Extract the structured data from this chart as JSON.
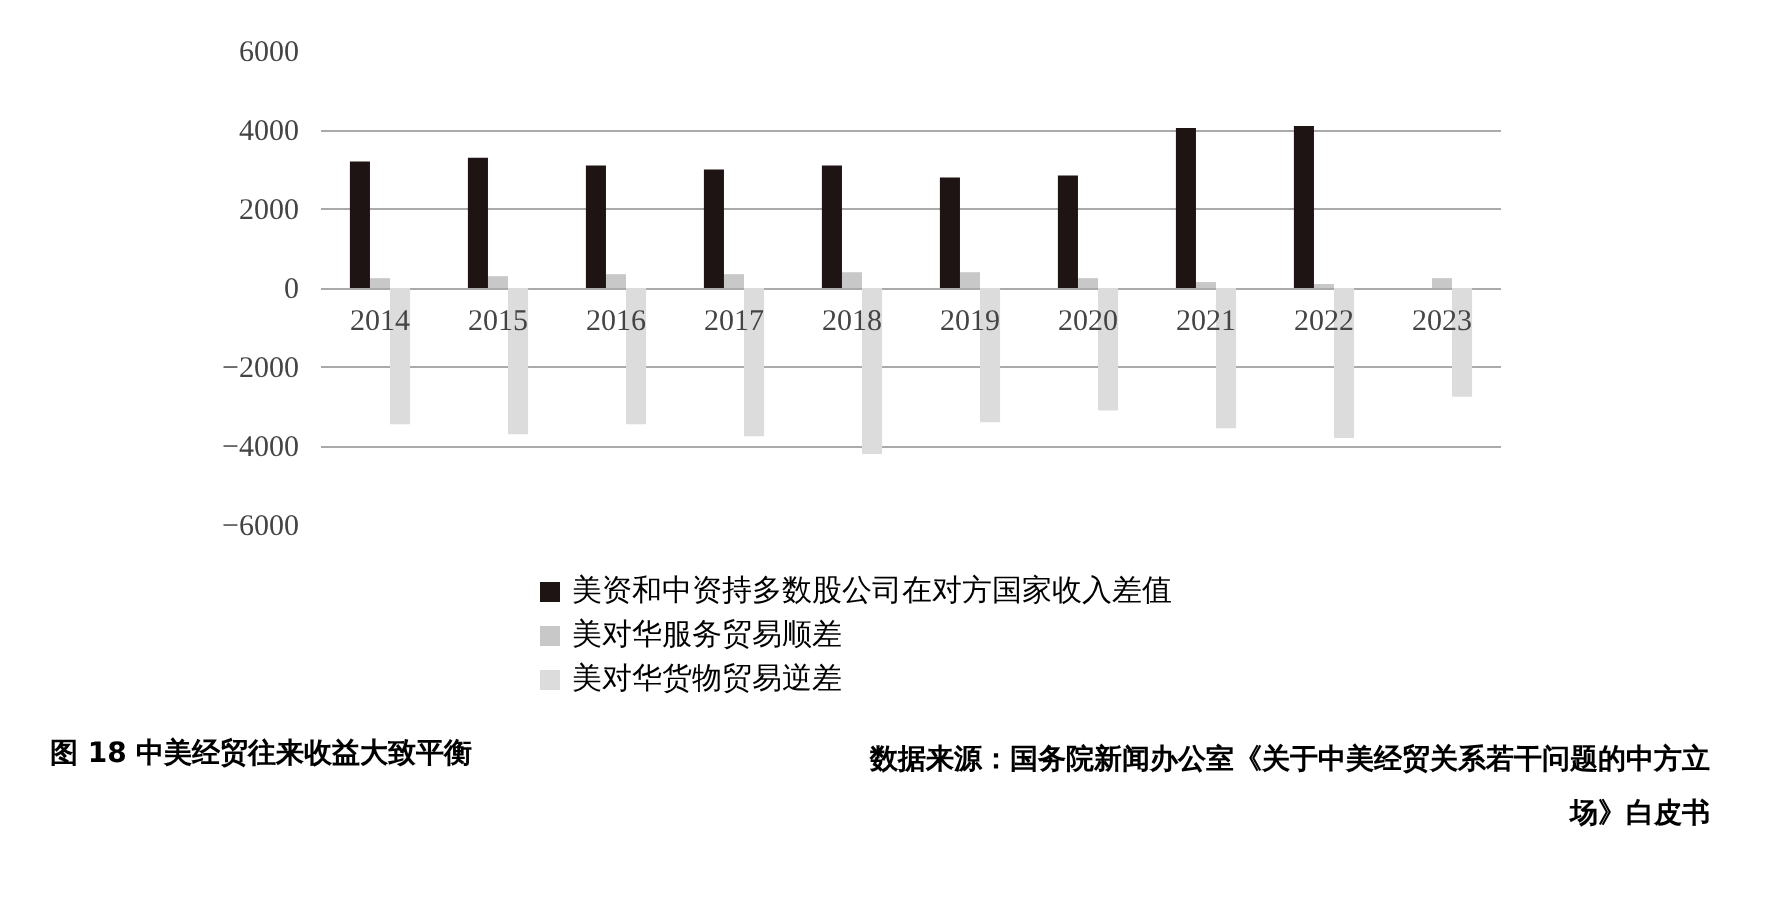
{
  "chart_data": {
    "type": "bar",
    "categories": [
      "2014",
      "2015",
      "2016",
      "2017",
      "2018",
      "2019",
      "2020",
      "2021",
      "2022",
      "2023"
    ],
    "series": [
      {
        "name": "美资和中资持多数股公司在对方国家收入差值",
        "color": "#1e1414",
        "values": [
          3200,
          3300,
          3100,
          3000,
          3100,
          2800,
          2850,
          4050,
          4100,
          null
        ]
      },
      {
        "name": "美对华服务贸易顺差",
        "color": "#c8c8c8",
        "values": [
          250,
          300,
          350,
          350,
          400,
          400,
          250,
          150,
          100,
          250
        ]
      },
      {
        "name": "美对华货物贸易逆差",
        "color": "#dcdcdc",
        "values": [
          -3450,
          -3700,
          -3450,
          -3750,
          -4200,
          -3400,
          -3100,
          -3550,
          -3800,
          -2750
        ]
      }
    ],
    "ylim": [
      -6000,
      6000
    ],
    "yticks": [
      -6000,
      -4000,
      -2000,
      0,
      2000,
      4000,
      6000
    ],
    "grid": "y",
    "legend": "bottom",
    "annotations": [
      "图 18  中美经贸往来收益大致平衡",
      "数据来源：国务院新闻办公室《关于中美经贸关系若干问题的中方立场》白皮书"
    ]
  }
}
